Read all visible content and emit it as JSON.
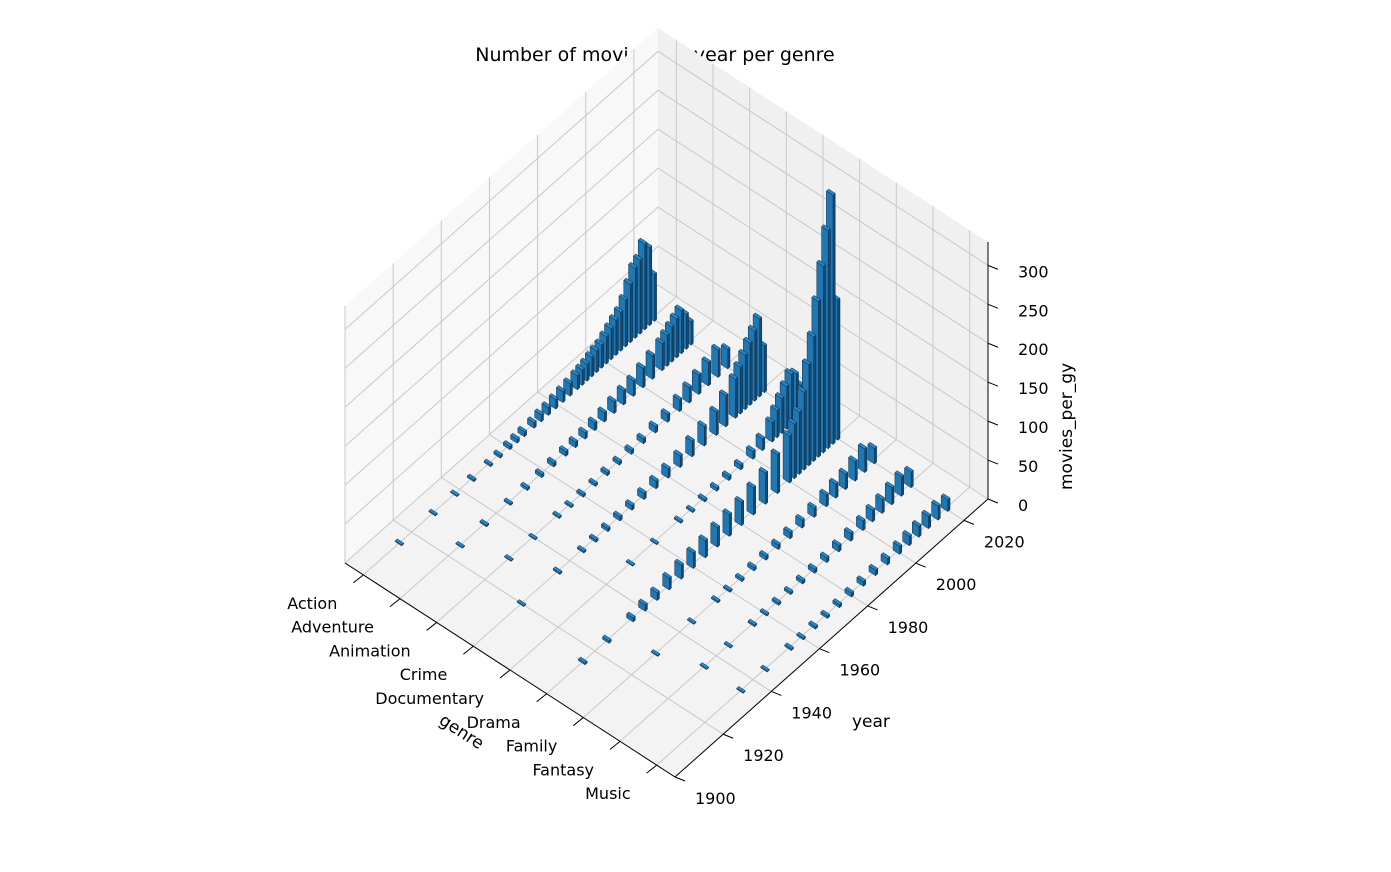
{
  "chart_data": {
    "type": "bar3d",
    "title": "Number of movies per year per genre",
    "xlabel": "genre",
    "ylabel": "year",
    "zlabel": "movies_per_gy",
    "genres": [
      "Action",
      "Adventure",
      "Animation",
      "Crime",
      "Documentary",
      "Drama",
      "Family",
      "Fantasy",
      "Music"
    ],
    "year_ticks": [
      1900,
      1920,
      1940,
      1960,
      1980,
      2000,
      2020
    ],
    "z_ticks": [
      0,
      50,
      100,
      150,
      200,
      250,
      300
    ],
    "ylim": [
      1900,
      2030
    ],
    "zlim": [
      0,
      330
    ],
    "grid": true,
    "bar_color": "#1f77b4",
    "series": [
      {
        "genre": "Action",
        "years": [
          1915,
          1929,
          1938,
          1945,
          1952,
          1956,
          1960,
          1963,
          1966,
          1970,
          1973,
          1976,
          1979,
          1982,
          1985,
          1988,
          1990,
          1992,
          1994,
          1996,
          1998,
          2000,
          2002,
          2004,
          2006,
          2008,
          2010,
          2012,
          2014,
          2016,
          2018,
          2020
        ],
        "values": [
          1,
          1,
          1,
          2,
          2,
          3,
          4,
          5,
          6,
          7,
          9,
          10,
          12,
          14,
          16,
          18,
          20,
          22,
          25,
          28,
          30,
          35,
          40,
          45,
          50,
          60,
          75,
          90,
          95,
          110,
          100,
          60
        ]
      },
      {
        "genre": "Adventure",
        "years": [
          1925,
          1935,
          1945,
          1952,
          1958,
          1963,
          1968,
          1972,
          1976,
          1980,
          1984,
          1988,
          1992,
          1996,
          2000,
          2004,
          2008,
          2010,
          2012,
          2014,
          2016,
          2018,
          2020
        ],
        "values": [
          1,
          2,
          2,
          3,
          4,
          5,
          6,
          7,
          8,
          10,
          12,
          15,
          18,
          20,
          25,
          30,
          35,
          40,
          45,
          50,
          55,
          45,
          30
        ]
      },
      {
        "genre": "Animation",
        "years": [
          1930,
          1940,
          1950,
          1955,
          1960,
          1965,
          1970,
          1975,
          1980,
          1985,
          1990,
          1995,
          2000,
          2004,
          2008,
          2012,
          2016,
          2020
        ],
        "values": [
          1,
          1,
          2,
          2,
          3,
          3,
          4,
          4,
          5,
          6,
          8,
          10,
          15,
          20,
          25,
          30,
          35,
          25
        ]
      },
      {
        "genre": "Crime",
        "years": [
          1920,
          1935,
          1945,
          1950,
          1955,
          1960,
          1965,
          1970,
          1975,
          1980,
          1985,
          1990,
          1995,
          2000,
          2004,
          2008,
          2010,
          2012,
          2014,
          2016,
          2018,
          2020
        ],
        "values": [
          1,
          2,
          2,
          3,
          4,
          5,
          6,
          8,
          10,
          12,
          15,
          20,
          25,
          30,
          40,
          50,
          60,
          70,
          80,
          90,
          100,
          60
        ]
      },
      {
        "genre": "Documentary",
        "years": [
          1950,
          1960,
          1970,
          1975,
          1980,
          1985,
          1990,
          1995,
          2000,
          2004,
          2008,
          2010,
          2012,
          2014,
          2016,
          2018,
          2020
        ],
        "values": [
          1,
          1,
          2,
          2,
          3,
          4,
          5,
          6,
          10,
          15,
          25,
          35,
          45,
          55,
          65,
          60,
          40
        ]
      },
      {
        "genre": "Drama",
        "years": [
          1915,
          1925,
          1935,
          1940,
          1945,
          1950,
          1955,
          1960,
          1965,
          1970,
          1975,
          1980,
          1985,
          1990,
          1995,
          2000,
          2002,
          2004,
          2006,
          2008,
          2010,
          2012,
          2014,
          2016,
          2018,
          2020
        ],
        "values": [
          2,
          3,
          5,
          8,
          10,
          15,
          18,
          20,
          22,
          25,
          28,
          30,
          35,
          40,
          50,
          60,
          70,
          80,
          100,
          130,
          160,
          200,
          240,
          280,
          320,
          180
        ]
      },
      {
        "genre": "Family",
        "years": [
          1930,
          1945,
          1955,
          1960,
          1965,
          1970,
          1975,
          1980,
          1985,
          1990,
          1995,
          2000,
          2004,
          2008,
          2012,
          2016,
          2020
        ],
        "values": [
          1,
          1,
          2,
          2,
          3,
          4,
          5,
          6,
          8,
          10,
          12,
          15,
          18,
          20,
          25,
          30,
          20
        ]
      },
      {
        "genre": "Fantasy",
        "years": [
          1935,
          1945,
          1955,
          1960,
          1965,
          1970,
          1975,
          1980,
          1985,
          1990,
          1995,
          2000,
          2004,
          2008,
          2012,
          2016,
          2020
        ],
        "values": [
          1,
          1,
          2,
          2,
          3,
          3,
          4,
          5,
          6,
          8,
          10,
          12,
          15,
          18,
          22,
          25,
          20
        ]
      },
      {
        "genre": "Music",
        "years": [
          1935,
          1945,
          1955,
          1960,
          1965,
          1970,
          1975,
          1980,
          1985,
          1990,
          1995,
          2000,
          2004,
          2008,
          2012,
          2016,
          2020
        ],
        "values": [
          1,
          1,
          2,
          2,
          3,
          3,
          4,
          5,
          6,
          7,
          8,
          10,
          12,
          14,
          16,
          18,
          15
        ]
      }
    ]
  }
}
